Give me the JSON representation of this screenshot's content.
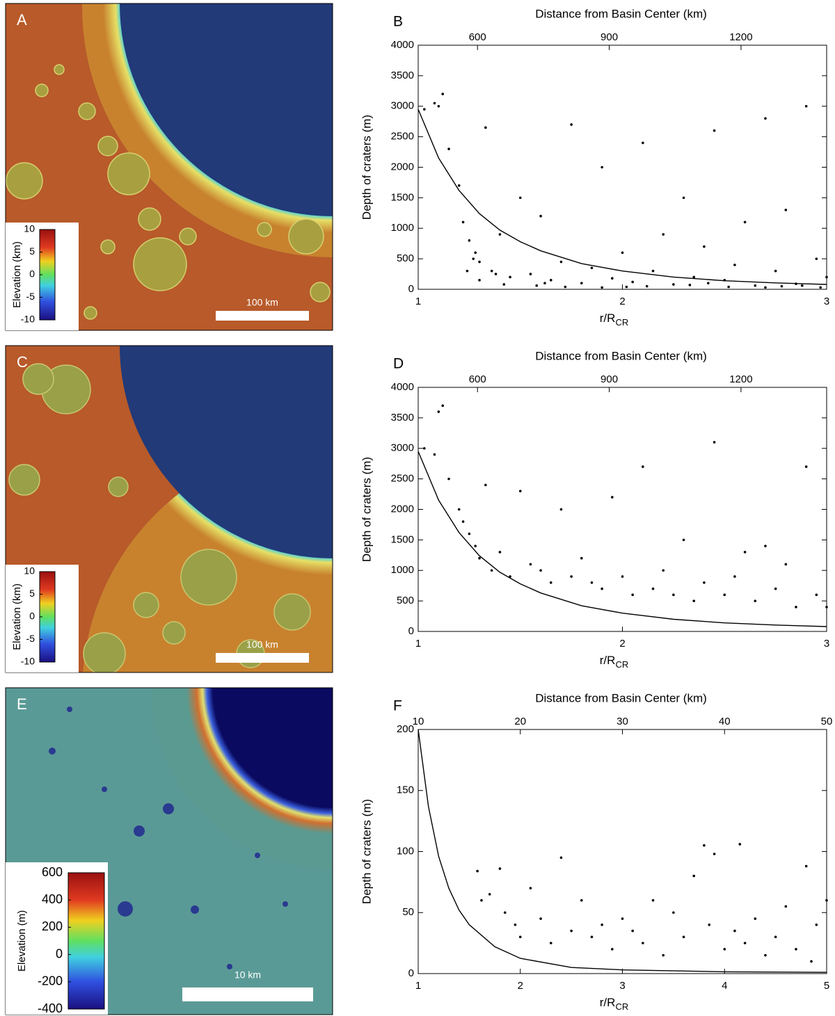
{
  "images": [
    {
      "letter": "A",
      "colorbar_label": "Elevation (km)",
      "colorbar_ticks": [
        10,
        5,
        0,
        -5,
        -10
      ],
      "scale_label": "100 km"
    },
    {
      "letter": "C",
      "colorbar_label": "Elevation (km)",
      "colorbar_ticks": [
        10,
        5,
        0,
        -5,
        -10
      ],
      "scale_label": "100 km"
    },
    {
      "letter": "E",
      "colorbar_label": "Elevation (m)",
      "colorbar_ticks": [
        600,
        400,
        200,
        0,
        -200,
        -400
      ],
      "scale_label": "10 km"
    }
  ],
  "chart_data": [
    {
      "type": "scatter",
      "panel_label": "B",
      "x2_label": "Distance from Basin Center (km)",
      "y_label": "Depth of craters (m)",
      "x_label": "r/R",
      "x_label_subscript": "CR",
      "color": "#000000",
      "xlim": [
        1,
        3
      ],
      "xticks": [
        1,
        2,
        3
      ],
      "x2lim": [
        465,
        1395
      ],
      "x2ticks": [
        600,
        900,
        1200
      ],
      "ylim": [
        0,
        4000
      ],
      "yticks": [
        0,
        500,
        1000,
        1500,
        2000,
        2500,
        3000,
        3500,
        4000
      ],
      "x": [
        1.03,
        1.08,
        1.1,
        1.12,
        1.15,
        1.2,
        1.22,
        1.25,
        1.28,
        1.3,
        1.33,
        1.36,
        1.4,
        1.45,
        1.5,
        1.55,
        1.6,
        1.65,
        1.7,
        1.75,
        1.8,
        1.85,
        1.9,
        1.95,
        2.0,
        2.05,
        2.1,
        2.15,
        2.2,
        2.25,
        2.3,
        2.35,
        2.4,
        2.45,
        2.5,
        2.55,
        2.6,
        2.65,
        2.7,
        2.75,
        2.8,
        2.85,
        2.9,
        2.95,
        3.0,
        1.24,
        1.3,
        1.42,
        1.58,
        1.72,
        1.9,
        2.12,
        2.33,
        2.52,
        2.7,
        2.88,
        1.27,
        1.38,
        1.62,
        2.02,
        2.42,
        2.78,
        2.97
      ],
      "y": [
        2950,
        3050,
        3000,
        3200,
        2300,
        1700,
        1100,
        800,
        600,
        450,
        2650,
        300,
        900,
        200,
        1500,
        250,
        1200,
        150,
        450,
        2700,
        100,
        350,
        2000,
        180,
        600,
        120,
        2400,
        300,
        900,
        80,
        1500,
        200,
        700,
        2600,
        150,
        400,
        1100,
        60,
        2800,
        300,
        1300,
        90,
        3000,
        500,
        200,
        300,
        150,
        80,
        60,
        40,
        30,
        50,
        70,
        40,
        30,
        60,
        500,
        250,
        100,
        40,
        100,
        50,
        30
      ],
      "curve": {
        "x": [
          1,
          1.1,
          1.2,
          1.3,
          1.4,
          1.5,
          1.6,
          1.8,
          2,
          2.25,
          2.5,
          2.75,
          3
        ],
        "y": [
          2950,
          2150,
          1620,
          1240,
          970,
          780,
          630,
          420,
          300,
          200,
          140,
          105,
          80
        ]
      }
    },
    {
      "type": "scatter",
      "panel_label": "D",
      "x2_label": "Distance from Basin Center (km)",
      "y_label": "Depth of craters (m)",
      "x_label": "r/R",
      "x_label_subscript": "CR",
      "color": "#000000",
      "xlim": [
        1,
        3
      ],
      "xticks": [
        1,
        2,
        3
      ],
      "x2lim": [
        465,
        1395
      ],
      "x2ticks": [
        600,
        900,
        1200
      ],
      "ylim": [
        0,
        4000
      ],
      "yticks": [
        0,
        500,
        1000,
        1500,
        2000,
        2500,
        3000,
        3500,
        4000
      ],
      "x": [
        1.03,
        1.08,
        1.1,
        1.12,
        1.15,
        1.2,
        1.22,
        1.25,
        1.28,
        1.3,
        1.33,
        1.36,
        1.4,
        1.45,
        1.5,
        1.55,
        1.6,
        1.65,
        1.7,
        1.75,
        1.8,
        1.85,
        1.9,
        1.95,
        2.0,
        2.05,
        2.1,
        2.15,
        2.2,
        2.25,
        2.3,
        2.35,
        2.4,
        2.45,
        2.5,
        2.55,
        2.6,
        2.65,
        2.7,
        2.75,
        2.8,
        2.85,
        2.9,
        2.95,
        3.0
      ],
      "y": [
        3000,
        2900,
        3600,
        3700,
        2500,
        2000,
        1800,
        1600,
        1400,
        1200,
        2400,
        1000,
        1300,
        900,
        2300,
        1100,
        1000,
        800,
        2000,
        900,
        1200,
        800,
        700,
        2200,
        900,
        600,
        2700,
        700,
        1000,
        600,
        1500,
        500,
        800,
        3100,
        600,
        900,
        1300,
        500,
        1400,
        700,
        1100,
        400,
        2700,
        600,
        400
      ],
      "curve": {
        "x": [
          1,
          1.1,
          1.2,
          1.3,
          1.4,
          1.5,
          1.6,
          1.8,
          2,
          2.25,
          2.5,
          2.75,
          3
        ],
        "y": [
          2950,
          2150,
          1620,
          1240,
          970,
          780,
          630,
          420,
          300,
          200,
          140,
          105,
          80
        ]
      }
    },
    {
      "type": "scatter",
      "panel_label": "F",
      "x2_label": "Distance from Basin Center (km)",
      "y_label": "Depth of craters (m)",
      "x_label": "r/R",
      "x_label_subscript": "CR",
      "color": "#000000",
      "xlim": [
        1,
        5
      ],
      "xticks": [
        1,
        2,
        3,
        4,
        5
      ],
      "x2lim": [
        10,
        50
      ],
      "x2ticks": [
        10,
        20,
        30,
        40,
        50
      ],
      "ylim": [
        0,
        200
      ],
      "yticks": [
        0,
        50,
        100,
        150,
        200
      ],
      "x": [
        1.58,
        1.62,
        1.7,
        1.8,
        1.85,
        1.95,
        2.0,
        2.1,
        2.2,
        2.3,
        2.4,
        2.5,
        2.6,
        2.7,
        2.8,
        2.9,
        3.0,
        3.1,
        3.2,
        3.3,
        3.4,
        3.5,
        3.6,
        3.7,
        3.8,
        3.85,
        3.9,
        4.0,
        4.1,
        4.15,
        4.2,
        4.3,
        4.4,
        4.5,
        4.6,
        4.7,
        4.8,
        4.85,
        4.9,
        5.0
      ],
      "y": [
        84,
        60,
        65,
        86,
        50,
        40,
        30,
        70,
        45,
        25,
        95,
        35,
        60,
        30,
        40,
        20,
        45,
        35,
        25,
        60,
        15,
        50,
        30,
        80,
        105,
        40,
        98,
        20,
        35,
        106,
        25,
        45,
        15,
        30,
        55,
        20,
        88,
        10,
        40,
        60
      ],
      "curve": {
        "x": [
          1,
          1.1,
          1.2,
          1.3,
          1.4,
          1.5,
          1.75,
          2,
          2.5,
          3,
          4,
          5
        ],
        "y": [
          200,
          137,
          96,
          70,
          52,
          40,
          22,
          12.5,
          5,
          3,
          1.5,
          1
        ]
      }
    }
  ]
}
